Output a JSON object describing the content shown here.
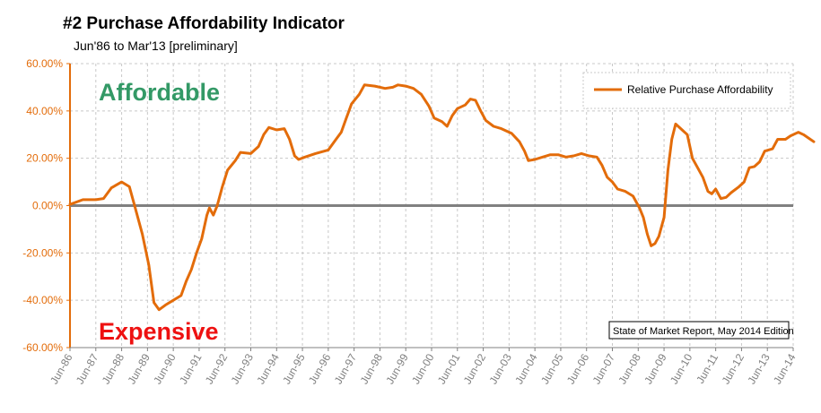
{
  "chart_data": {
    "type": "line",
    "title": "#2 Purchase Affordability Indicator",
    "subtitle": "Jun'86 to Mar'13 [preliminary]",
    "y_ticks": [
      "60.00%",
      "40.00%",
      "20.00%",
      "0.00%",
      "-20.00%",
      "-40.00%",
      "-60.00%"
    ],
    "ylim": [
      -60,
      60
    ],
    "x_ticks": [
      "Jun-86",
      "Jun-87",
      "Jun-88",
      "Jun-89",
      "Jun-90",
      "Jun-91",
      "Jun-92",
      "Jun-93",
      "Jun-94",
      "Jun-95",
      "Jun-96",
      "Jun-97",
      "Jun-98",
      "Jun-99",
      "Jun-00",
      "Jun-01",
      "Jun-02",
      "Jun-03",
      "Jun-04",
      "Jun-05",
      "Jun-06",
      "Jun-07",
      "Jun-08",
      "Jun-09",
      "Jun-10",
      "Jun-11",
      "Jun-12",
      "Jun-13",
      "Jun-14"
    ],
    "xlim": [
      1986.5,
      2014.5
    ],
    "grid": true,
    "legend_position": "top-right",
    "series": [
      {
        "name": "Relative Purchase Affordability",
        "color": "#e36c0a",
        "points": [
          [
            1986.5,
            0.5
          ],
          [
            1987.0,
            2.5
          ],
          [
            1987.5,
            2.5
          ],
          [
            1987.8,
            3.0
          ],
          [
            1988.1,
            7.5
          ],
          [
            1988.5,
            10.0
          ],
          [
            1988.8,
            8.0
          ],
          [
            1989.0,
            0.0
          ],
          [
            1989.3,
            -12.0
          ],
          [
            1989.55,
            -25.0
          ],
          [
            1989.75,
            -41.0
          ],
          [
            1989.95,
            -44.0
          ],
          [
            1990.2,
            -42.0
          ],
          [
            1990.5,
            -40.0
          ],
          [
            1990.8,
            -38.0
          ],
          [
            1991.0,
            -32.0
          ],
          [
            1991.2,
            -27.0
          ],
          [
            1991.4,
            -20.0
          ],
          [
            1991.6,
            -14.0
          ],
          [
            1991.8,
            -4.0
          ],
          [
            1991.9,
            -1.0
          ],
          [
            1992.05,
            -4.0
          ],
          [
            1992.2,
            0.0
          ],
          [
            1992.4,
            8.0
          ],
          [
            1992.6,
            15.0
          ],
          [
            1992.9,
            19.0
          ],
          [
            1993.1,
            22.5
          ],
          [
            1993.5,
            22.0
          ],
          [
            1993.8,
            25.0
          ],
          [
            1994.0,
            30.0
          ],
          [
            1994.2,
            33.0
          ],
          [
            1994.5,
            32.0
          ],
          [
            1994.8,
            32.5
          ],
          [
            1995.0,
            28.0
          ],
          [
            1995.2,
            21.0
          ],
          [
            1995.35,
            19.5
          ],
          [
            1995.6,
            20.5
          ],
          [
            1996.0,
            22.0
          ],
          [
            1996.5,
            23.5
          ],
          [
            1996.8,
            28.0
          ],
          [
            1997.0,
            31.0
          ],
          [
            1997.2,
            37.0
          ],
          [
            1997.4,
            43.0
          ],
          [
            1997.7,
            47.0
          ],
          [
            1997.9,
            51.0
          ],
          [
            1998.3,
            50.5
          ],
          [
            1998.7,
            49.5
          ],
          [
            1999.0,
            50.0
          ],
          [
            1999.2,
            51.0
          ],
          [
            1999.5,
            50.5
          ],
          [
            1999.8,
            49.5
          ],
          [
            2000.1,
            47.0
          ],
          [
            2000.4,
            42.0
          ],
          [
            2000.6,
            37.0
          ],
          [
            2000.9,
            35.5
          ],
          [
            2001.1,
            33.5
          ],
          [
            2001.3,
            38.0
          ],
          [
            2001.5,
            41.0
          ],
          [
            2001.8,
            42.5
          ],
          [
            2002.0,
            45.0
          ],
          [
            2002.2,
            44.5
          ],
          [
            2002.4,
            40.0
          ],
          [
            2002.6,
            36.0
          ],
          [
            2002.9,
            33.5
          ],
          [
            2003.2,
            32.5
          ],
          [
            2003.6,
            30.5
          ],
          [
            2003.9,
            27.0
          ],
          [
            2004.1,
            23.0
          ],
          [
            2004.25,
            19.0
          ],
          [
            2004.5,
            19.5
          ],
          [
            2004.8,
            20.5
          ],
          [
            2005.1,
            21.5
          ],
          [
            2005.4,
            21.5
          ],
          [
            2005.7,
            20.5
          ],
          [
            2006.0,
            21.0
          ],
          [
            2006.3,
            22.0
          ],
          [
            2006.6,
            21.0
          ],
          [
            2006.9,
            20.5
          ],
          [
            2007.1,
            17.0
          ],
          [
            2007.3,
            12.0
          ],
          [
            2007.5,
            10.0
          ],
          [
            2007.7,
            7.0
          ],
          [
            2008.0,
            6.0
          ],
          [
            2008.3,
            4.0
          ],
          [
            2008.55,
            -1.0
          ],
          [
            2008.7,
            -5.0
          ],
          [
            2008.85,
            -12.0
          ],
          [
            2009.0,
            -17.0
          ],
          [
            2009.15,
            -16.0
          ],
          [
            2009.3,
            -13.0
          ],
          [
            2009.5,
            -5.0
          ],
          [
            2009.65,
            15.0
          ],
          [
            2009.8,
            28.0
          ],
          [
            2009.95,
            34.5
          ],
          [
            2010.2,
            32.0
          ],
          [
            2010.4,
            30.0
          ],
          [
            2010.6,
            20.0
          ],
          [
            2010.8,
            16.0
          ],
          [
            2011.0,
            12.0
          ],
          [
            2011.2,
            6.0
          ],
          [
            2011.35,
            5.0
          ],
          [
            2011.5,
            7.0
          ],
          [
            2011.7,
            3.0
          ],
          [
            2011.9,
            3.5
          ],
          [
            2012.1,
            5.5
          ],
          [
            2012.4,
            8.0
          ],
          [
            2012.6,
            10.0
          ],
          [
            2012.8,
            16.0
          ],
          [
            2013.0,
            16.5
          ],
          [
            2013.2,
            18.5
          ],
          [
            2013.4,
            23.0
          ],
          [
            2013.7,
            24.0
          ],
          [
            2013.9,
            28.0
          ],
          [
            2014.2,
            28.0
          ],
          [
            2014.4,
            29.5
          ],
          [
            2014.7,
            31.0
          ],
          [
            2014.9,
            30.0
          ],
          [
            2015.1,
            28.5
          ],
          [
            2015.3,
            27.0
          ]
        ]
      }
    ],
    "annotations": {
      "top_left": "Affordable",
      "bottom_left": "Expensive",
      "source_box": "State of Market Report, May 2014 Edition"
    },
    "zero_line_color": "#808080"
  }
}
